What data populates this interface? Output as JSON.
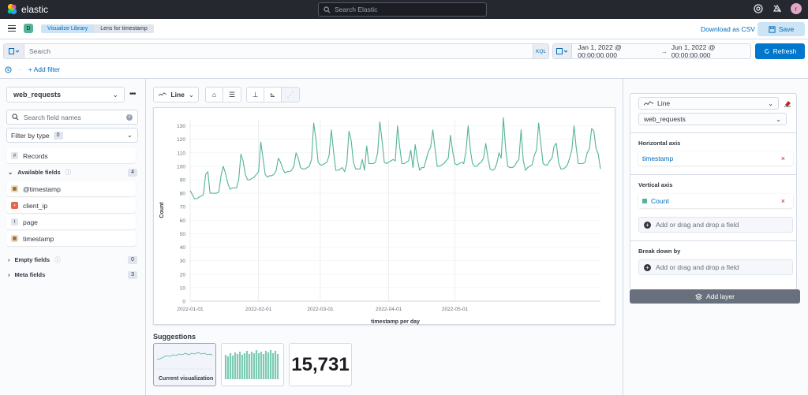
{
  "topbar": {
    "brand": "elastic",
    "search_placeholder": "Search Elastic",
    "avatar_letter": "r"
  },
  "nav": {
    "space_letter": "D",
    "crumbs": [
      "Visualize Library",
      "Lens for timestamp"
    ],
    "download_csv": "Download as CSV",
    "save": "Save"
  },
  "query": {
    "placeholder": "Search",
    "lang": "KQL",
    "date_start": "Jan 1, 2022 @ 00:00:00.000",
    "date_arrow": "→",
    "date_end": "Jun 1, 2022 @ 00:00:00.000",
    "refresh": "Refresh",
    "add_filter": "+ Add filter"
  },
  "sidebar": {
    "index_pattern": "web_requests",
    "field_search_placeholder": "Search field names",
    "filter_by_type": "Filter by type",
    "filter_count": "0",
    "records": "Records",
    "available_label": "Available fields",
    "available_count": "4",
    "fields": [
      {
        "name": "@timestamp",
        "type": "date"
      },
      {
        "name": "client_ip",
        "type": "ip"
      },
      {
        "name": "page",
        "type": "string"
      },
      {
        "name": "timestamp",
        "type": "date"
      }
    ],
    "empty_label": "Empty fields",
    "empty_count": "0",
    "meta_label": "Meta fields",
    "meta_count": "3"
  },
  "toolbar": {
    "chart_type": "Line"
  },
  "chart_data": {
    "type": "line",
    "xlabel": "timestamp per day",
    "ylabel": "Count",
    "ylim": [
      0,
      135
    ],
    "yticks": [
      0,
      10,
      20,
      30,
      40,
      50,
      60,
      70,
      80,
      90,
      100,
      110,
      120,
      130
    ],
    "xticks": [
      "2022-01-01",
      "2022-02-01",
      "2022-03-01",
      "2022-04-01",
      "2022-05-01"
    ],
    "x_start": "2022-01-01",
    "series": [
      {
        "color": "#54b399",
        "values": [
          82,
          79,
          76,
          76,
          77,
          78,
          79,
          94,
          96,
          80,
          80,
          80,
          80,
          81,
          93,
          100,
          95,
          88,
          83,
          84,
          84,
          84,
          90,
          109,
          104,
          94,
          90,
          90,
          91,
          92,
          94,
          96,
          118,
          106,
          94,
          92,
          93,
          93,
          94,
          97,
          106,
          103,
          98,
          95,
          96,
          96,
          97,
          100,
          110,
          106,
          99,
          98,
          98,
          99,
          100,
          105,
          132,
          120,
          103,
          101,
          101,
          102,
          103,
          108,
          127,
          111,
          97,
          97,
          98,
          99,
          96,
          102,
          126,
          119,
          103,
          98,
          98,
          98,
          105,
          97,
          115,
          102,
          102,
          102,
          103,
          110,
          133,
          119,
          103,
          102,
          103,
          104,
          105,
          104,
          130,
          114,
          102,
          102,
          103,
          104,
          112,
          99,
          116,
          105,
          97,
          99,
          99,
          105,
          111,
          114,
          127,
          113,
          100,
          100,
          101,
          102,
          104,
          106,
          123,
          111,
          102,
          101,
          102,
          103,
          102,
          111,
          130,
          112,
          102,
          100,
          100,
          102,
          103,
          106,
          117,
          106,
          98,
          97,
          98,
          102,
          110,
          106,
          136,
          113,
          100,
          99,
          99,
          100,
          103,
          105,
          127,
          104,
          97,
          99,
          100,
          101,
          108,
          112,
          132,
          116,
          102,
          101,
          101,
          104,
          106,
          115,
          117,
          103,
          98,
          98,
          99,
          101,
          106,
          112,
          130,
          114,
          102,
          102,
          102,
          103,
          110,
          113,
          128,
          126,
          113,
          109,
          98
        ]
      }
    ]
  },
  "suggestions": {
    "title": "Suggestions",
    "current_label": "Current visualization",
    "metric_value": "15,731"
  },
  "config": {
    "chart_type": "Line",
    "layer_index": "web_requests",
    "horizontal_title": "Horizontal axis",
    "horizontal_field": "timestamp",
    "vertical_title": "Vertical axis",
    "vertical_field": "Count",
    "add_drop": "Add or drag and drop a field",
    "breakdown_title": "Break down by",
    "add_layer": "Add layer"
  }
}
